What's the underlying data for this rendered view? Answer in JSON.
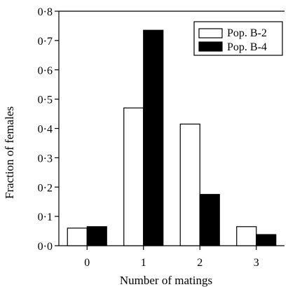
{
  "chart_data": {
    "type": "bar",
    "categories": [
      "0",
      "1",
      "2",
      "3"
    ],
    "series": [
      {
        "name": "Pop. B-2",
        "values": [
          0.06,
          0.47,
          0.415,
          0.065
        ],
        "color": "#ffffff"
      },
      {
        "name": "Pop. B-4",
        "values": [
          0.065,
          0.735,
          0.175,
          0.038
        ],
        "color": "#000000"
      }
    ],
    "xlabel": "Number of matings",
    "ylabel": "Fraction of females",
    "ylim": [
      0,
      0.8
    ],
    "yticks": [
      {
        "value": 0.0,
        "label": "0·0"
      },
      {
        "value": 0.1,
        "label": "0·1"
      },
      {
        "value": 0.2,
        "label": "0·2"
      },
      {
        "value": 0.3,
        "label": "0·3"
      },
      {
        "value": 0.4,
        "label": "0·4"
      },
      {
        "value": 0.5,
        "label": "0·5"
      },
      {
        "value": 0.6,
        "label": "0·6"
      },
      {
        "value": 0.7,
        "label": "0·7"
      },
      {
        "value": 0.8,
        "label": "0·8"
      }
    ],
    "legend": "top-right",
    "grid": false
  }
}
